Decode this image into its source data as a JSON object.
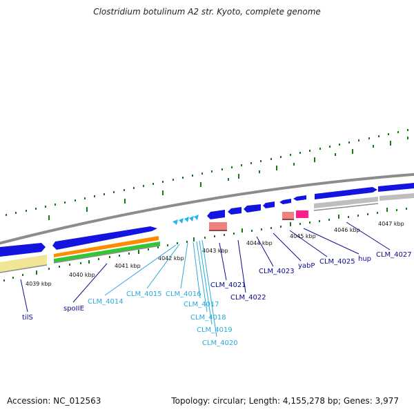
{
  "title": "Clostridium botulinum A2 str. Kyoto, complete genome",
  "footer": {
    "accession": "Accession: NC_012563",
    "summary": "Topology: circular; Length: 4,155,278 bp; Genes: 3,977"
  },
  "colors": {
    "backbone": "#8c8c8c",
    "gene_blue": "#1414e0",
    "gene_cyan": "#28b4f0",
    "gene_salmon": "#f08080",
    "gene_pink": "#ff1e8c",
    "gene_gray": "#bebebe",
    "gene_orange": "#ff8c00",
    "gene_green": "#32c832",
    "gene_yellow": "#f0e696",
    "tick_green": "#147814",
    "label_dark": "#0a0a8c",
    "label_cyan": "#28aadc"
  },
  "scale_labels": [
    "4039 kbp",
    "4040 kbp",
    "4041 kbp",
    "4042 kbp",
    "4043 kbp",
    "4044 kbp",
    "4045 kbp",
    "4046 kbp",
    "4047 kbp"
  ],
  "gene_labels": {
    "tilS": "tilS",
    "spoIIE": "spoIIE",
    "CLM_4014": "CLM_4014",
    "CLM_4015": "CLM_4015",
    "CLM_4016": "CLM_4016",
    "CLM_4017": "CLM_4017",
    "CLM_4018": "CLM_4018",
    "CLM_4019": "CLM_4019",
    "CLM_4020": "CLM_4020",
    "CLM_4021": "CLM_4021",
    "CLM_4022": "CLM_4022",
    "CLM_4023": "CLM_4023",
    "yabP": "yabP",
    "CLM_4025": "CLM_4025",
    "hup": "hup",
    "CLM_4027": "CLM_4027"
  }
}
